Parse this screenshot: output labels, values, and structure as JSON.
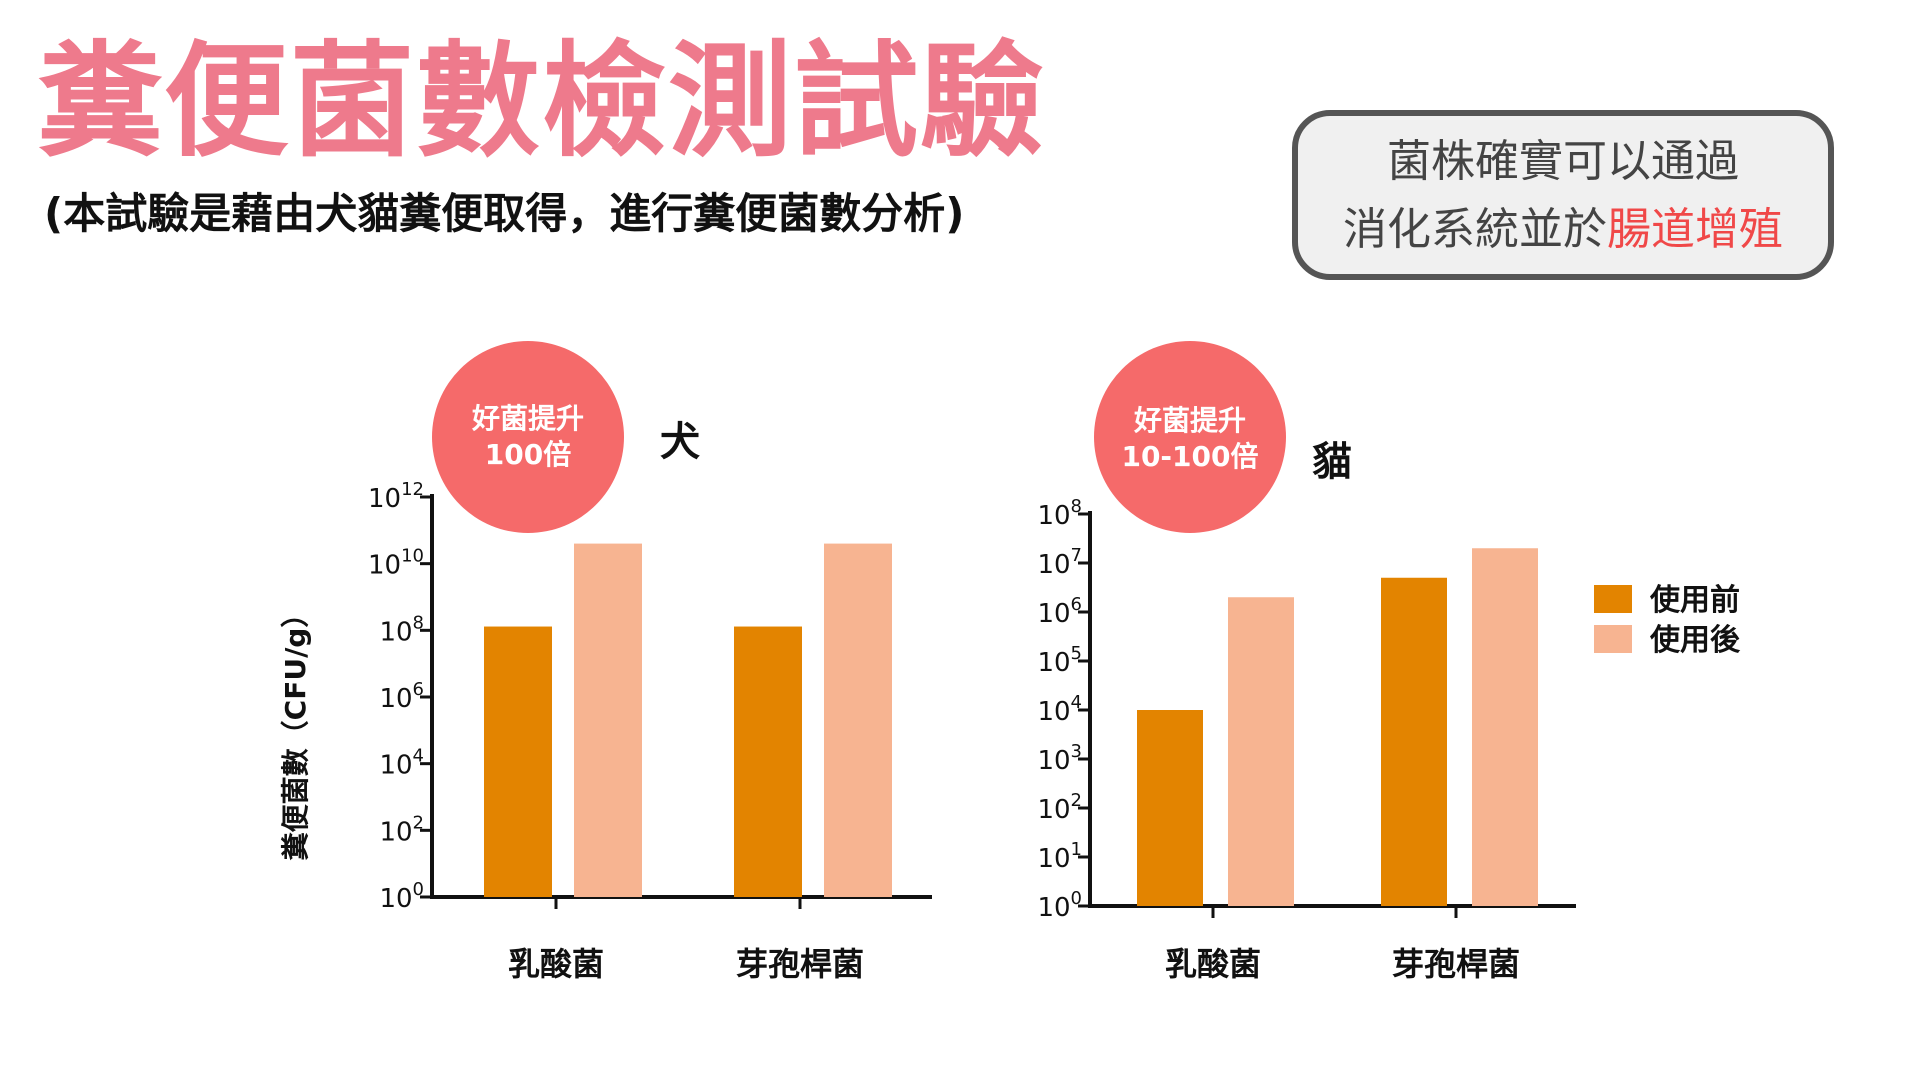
{
  "header": {
    "title": "糞便菌數檢測試驗",
    "subtitle": "(本試驗是藉由犬貓糞便取得，進行糞便菌數分析)"
  },
  "callout": {
    "line1": "菌株確實可以通過",
    "line2_prefix": "消化系統並於",
    "line2_highlight": "腸道增殖",
    "highlight_color": "#f04848"
  },
  "colors": {
    "before": "#e38400",
    "after": "#f7b491",
    "badge": "#f56a6a",
    "title": "#ee7a8c"
  },
  "legend": {
    "before_label": "使用前",
    "after_label": "使用後"
  },
  "chart_data": [
    {
      "type": "bar",
      "animal": "犬",
      "badge": [
        "好菌提升",
        "100倍"
      ],
      "ylabel": "糞便菌數（CFU/g）",
      "yscale": "log",
      "ylim": [
        1,
        1000000000000
      ],
      "yticks": [
        {
          "base": "10",
          "exp": "0"
        },
        {
          "base": "10",
          "exp": "2"
        },
        {
          "base": "10",
          "exp": "4"
        },
        {
          "base": "10",
          "exp": "6"
        },
        {
          "base": "10",
          "exp": "8"
        },
        {
          "base": "10",
          "exp": "10"
        },
        {
          "base": "10",
          "exp": "12"
        }
      ],
      "categories": [
        "乳酸菌",
        "芽孢桿菌"
      ],
      "series": [
        {
          "name": "使用前",
          "values": [
            130000000,
            130000000
          ]
        },
        {
          "name": "使用後",
          "values": [
            40000000000,
            40000000000
          ]
        }
      ]
    },
    {
      "type": "bar",
      "animal": "貓",
      "badge": [
        "好菌提升",
        "10-100倍"
      ],
      "yscale": "log",
      "ylim": [
        1,
        100000000
      ],
      "yticks": [
        {
          "base": "10",
          "exp": "0"
        },
        {
          "base": "10",
          "exp": "1"
        },
        {
          "base": "10",
          "exp": "2"
        },
        {
          "base": "10",
          "exp": "3"
        },
        {
          "base": "10",
          "exp": "4"
        },
        {
          "base": "10",
          "exp": "5"
        },
        {
          "base": "10",
          "exp": "6"
        },
        {
          "base": "10",
          "exp": "7"
        },
        {
          "base": "10",
          "exp": "8"
        }
      ],
      "categories": [
        "乳酸菌",
        "芽孢桿菌"
      ],
      "series": [
        {
          "name": "使用前",
          "values": [
            10000,
            5000000
          ]
        },
        {
          "name": "使用後",
          "values": [
            2000000,
            20000000
          ]
        }
      ]
    }
  ]
}
